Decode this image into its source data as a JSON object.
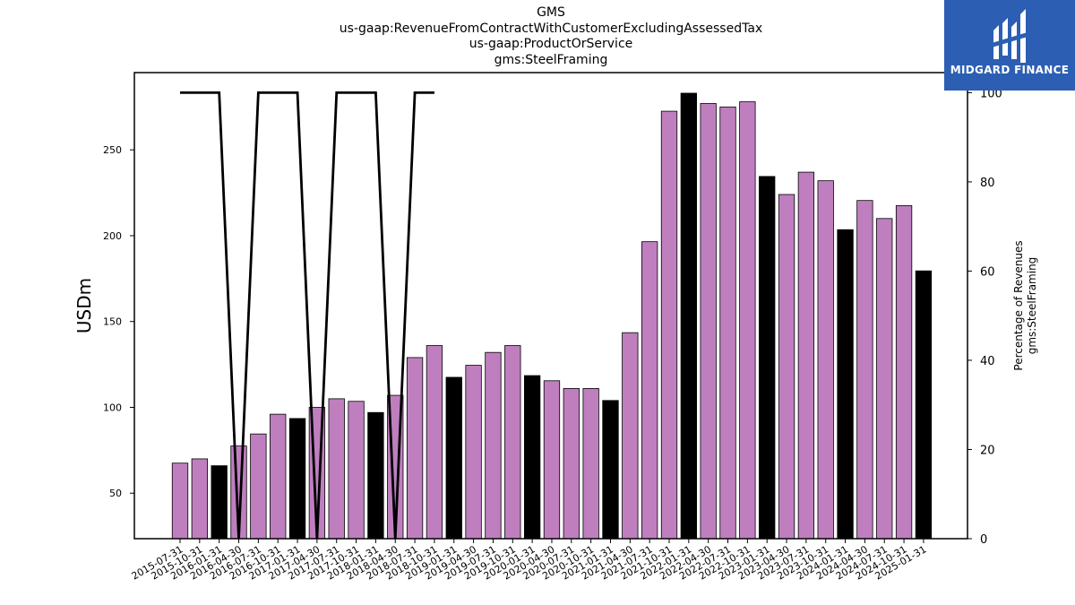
{
  "title_lines": [
    "GMS",
    "us-gaap:RevenueFromContractWithCustomerExcludingAssessedTax",
    "us-gaap:ProductOrService",
    "gms:SteelFraming"
  ],
  "logo": {
    "text": "MIDGARD FINANCE",
    "background": "#2c5fb3"
  },
  "chart_data": {
    "type": "bar",
    "categories": [
      "2015-07-31",
      "2015-10-31",
      "2016-01-31",
      "2016-04-30",
      "2016-07-31",
      "2016-10-31",
      "2017-01-31",
      "2017-04-30",
      "2017-07-31",
      "2017-10-31",
      "2018-01-31",
      "2018-04-30",
      "2018-07-31",
      "2018-10-31",
      "2019-01-31",
      "2019-04-30",
      "2019-07-31",
      "2019-10-31",
      "2020-01-31",
      "2020-04-30",
      "2020-07-31",
      "2020-10-31",
      "2021-01-31",
      "2021-04-30",
      "2021-07-31",
      "2021-10-31",
      "2022-01-31",
      "2022-04-30",
      "2022-07-31",
      "2022-10-31",
      "2023-01-31",
      "2023-04-30",
      "2023-07-31",
      "2023-10-31",
      "2024-01-31",
      "2024-04-30",
      "2024-07-31",
      "2024-10-31",
      "2025-01-31"
    ],
    "series": [
      {
        "type": "bar",
        "axis": "left",
        "values": [
          67.5,
          70,
          66,
          77.5,
          84.5,
          96,
          93.5,
          100,
          105,
          103.5,
          97,
          107,
          129,
          136,
          117.5,
          124.5,
          132,
          136,
          118.5,
          115.5,
          111,
          111,
          104,
          143.5,
          196.5,
          272.5,
          283,
          277,
          275,
          278,
          234.5,
          224,
          237,
          232,
          203.5,
          220.5,
          210,
          217.5,
          179.5
        ],
        "bar_colors": [
          "#bf7fbf",
          "#bf7fbf",
          "#000000",
          "#bf7fbf",
          "#bf7fbf",
          "#bf7fbf",
          "#000000",
          "#bf7fbf",
          "#bf7fbf",
          "#bf7fbf",
          "#000000",
          "#bf7fbf",
          "#bf7fbf",
          "#bf7fbf",
          "#000000",
          "#bf7fbf",
          "#bf7fbf",
          "#bf7fbf",
          "#000000",
          "#bf7fbf",
          "#bf7fbf",
          "#bf7fbf",
          "#000000",
          "#bf7fbf",
          "#bf7fbf",
          "#bf7fbf",
          "#000000",
          "#bf7fbf",
          "#bf7fbf",
          "#bf7fbf",
          "#000000",
          "#bf7fbf",
          "#bf7fbf",
          "#bf7fbf",
          "#000000",
          "#bf7fbf",
          "#bf7fbf",
          "#bf7fbf",
          "#000000"
        ]
      },
      {
        "type": "line",
        "axis": "right",
        "color": "#000000",
        "values": [
          100,
          100,
          100,
          0,
          100,
          100,
          100,
          0,
          100,
          100,
          100,
          0,
          100,
          100,
          null,
          null,
          null,
          null,
          null,
          null,
          null,
          null,
          null,
          null,
          null,
          null,
          null,
          null,
          null,
          null,
          null,
          null,
          null,
          null,
          null,
          null,
          null,
          null,
          null
        ]
      }
    ],
    "ylabel": "USDm",
    "y2label_lines": [
      "Percentage of Revenues",
      "gms:SteelFraming"
    ],
    "ylim": [
      23.5,
      295
    ],
    "y2lim": [
      0,
      104.5
    ],
    "yticks": [
      50,
      100,
      150,
      200,
      250
    ],
    "y2ticks": [
      0,
      20,
      40,
      60,
      80,
      100
    ],
    "grid": false
  }
}
